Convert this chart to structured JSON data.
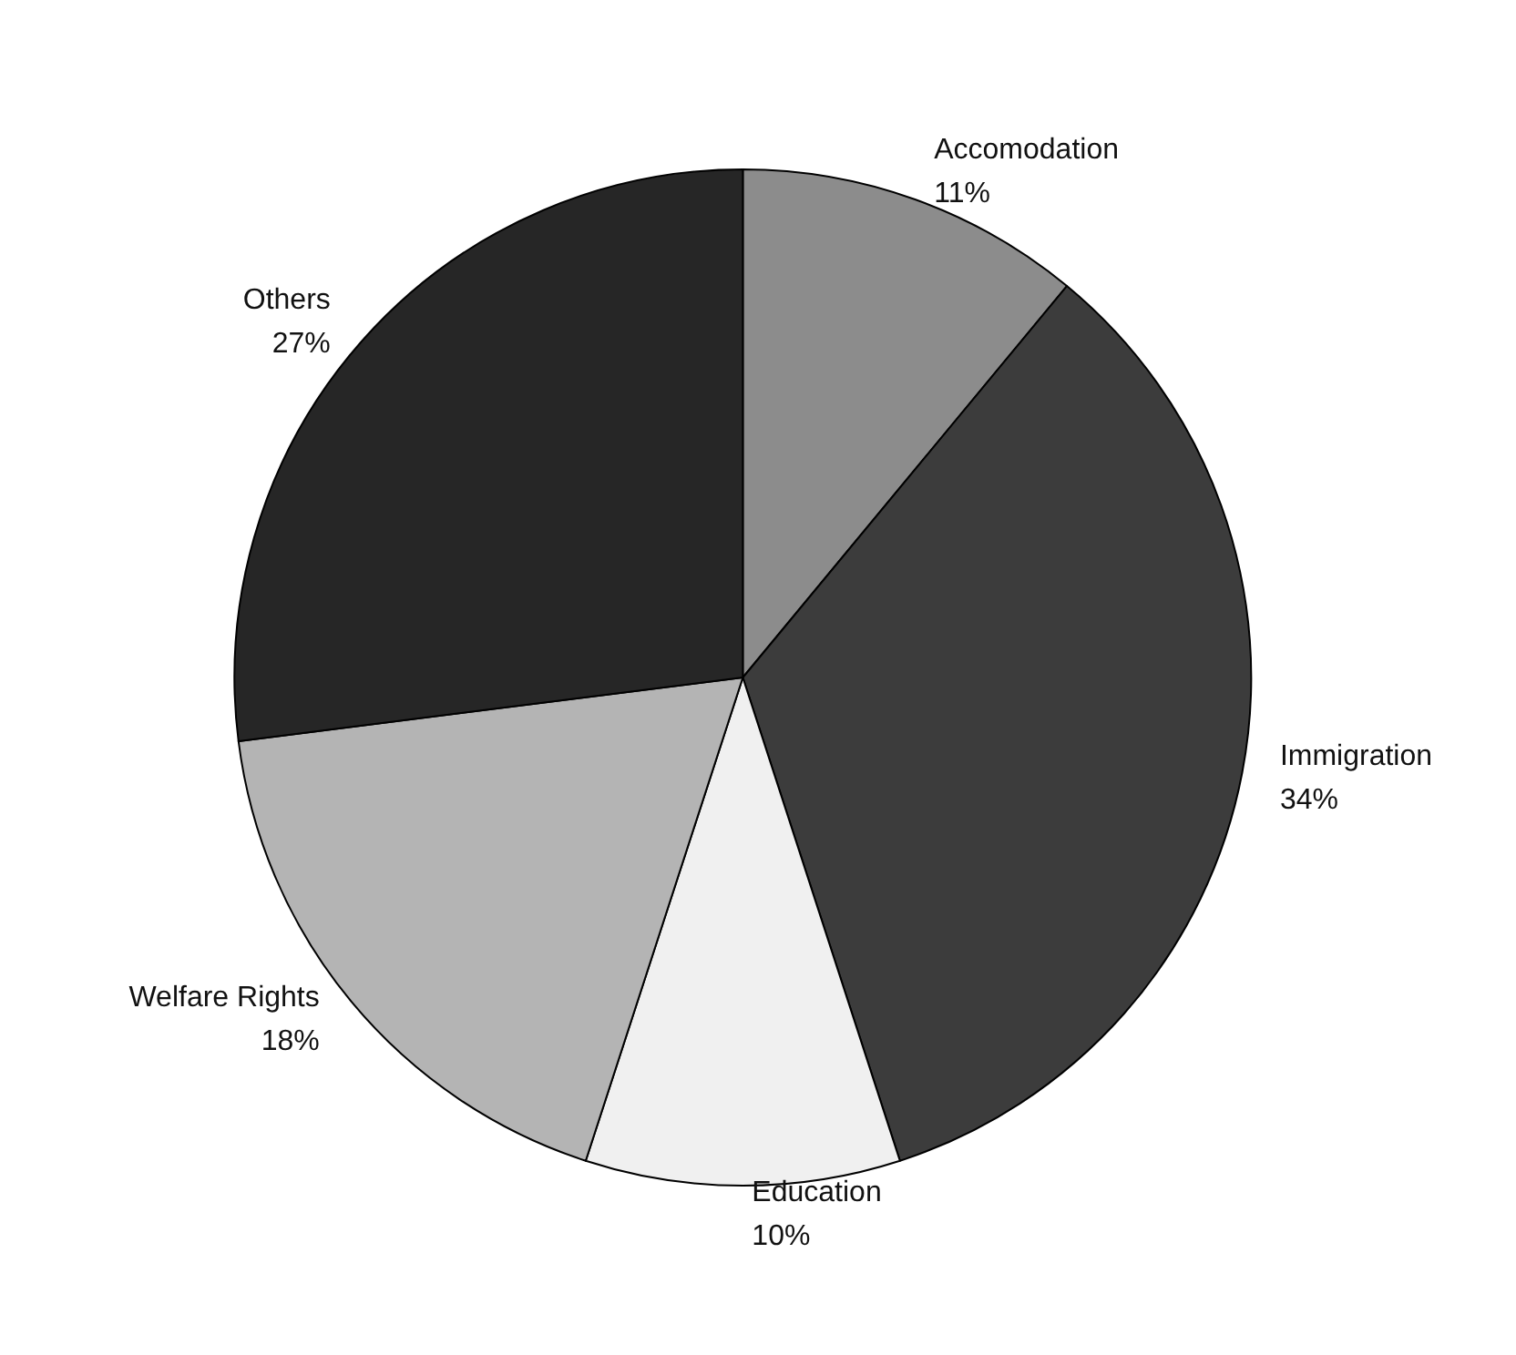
{
  "chart_data": {
    "type": "pie",
    "categories": [
      "Accomodation",
      "Immigration",
      "Education",
      "Welfare Rights",
      "Others"
    ],
    "values": [
      11,
      34,
      10,
      18,
      27
    ],
    "value_labels": [
      "11%",
      "34%",
      "10%",
      "18%",
      "27%"
    ],
    "colors": [
      "#8c8c8c",
      "#3c3c3c",
      "#f0f0f0",
      "#b4b4b4",
      "#262626"
    ],
    "legend": false
  }
}
